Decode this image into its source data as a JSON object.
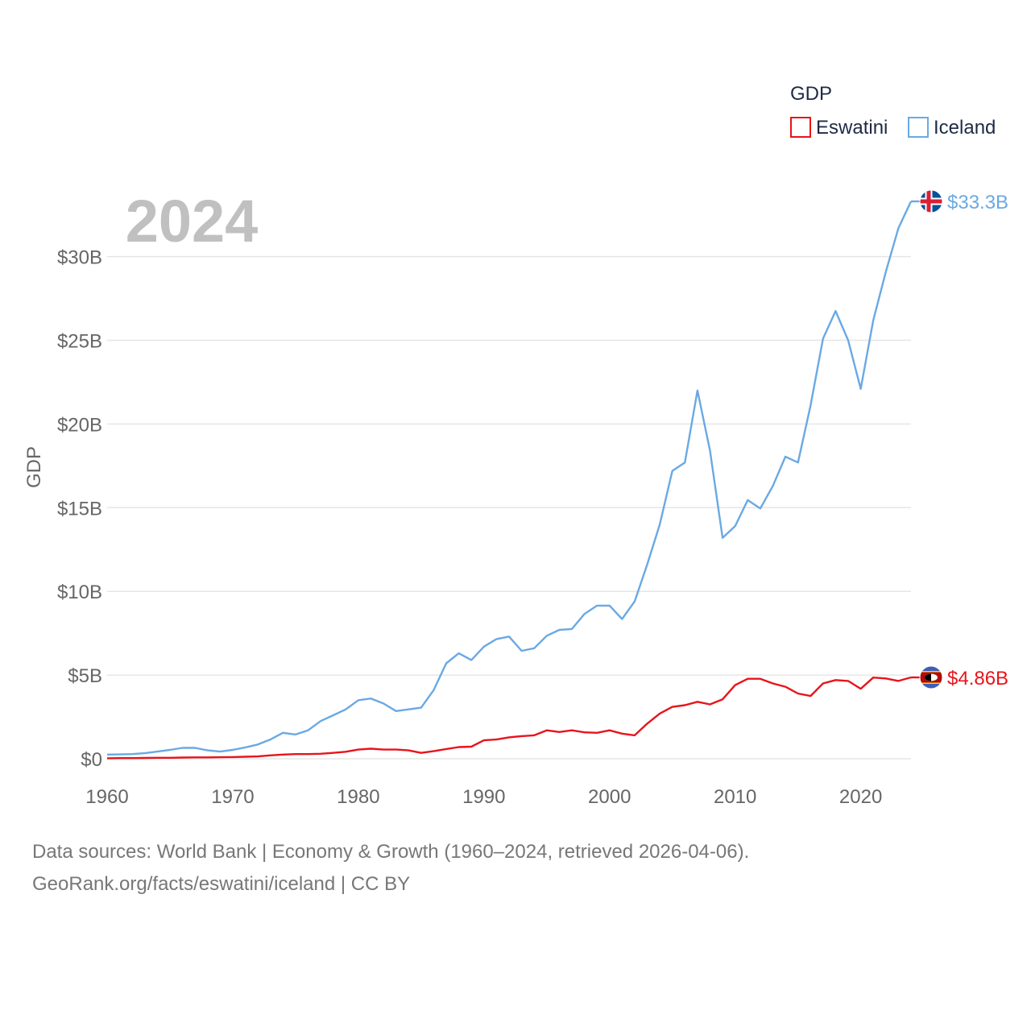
{
  "chart_data": {
    "type": "line",
    "title": "",
    "ylabel": "GDP",
    "xlabel": "",
    "year_label": "2024",
    "legend": {
      "title": "GDP",
      "position": "top-right"
    },
    "xlim": [
      1960,
      2024
    ],
    "ylim": [
      0,
      33.3
    ],
    "x_ticks": [
      1960,
      1970,
      1980,
      1990,
      2000,
      2010,
      2020
    ],
    "x_tick_labels": [
      "1960",
      "1970",
      "1980",
      "1990",
      "2000",
      "2010",
      "2020"
    ],
    "y_ticks": [
      0,
      5,
      10,
      15,
      20,
      25,
      30
    ],
    "y_tick_labels": [
      "$0",
      "$5B",
      "$10B",
      "$15B",
      "$20B",
      "$25B",
      "$30B"
    ],
    "grid": true,
    "x": [
      1960,
      1961,
      1962,
      1963,
      1964,
      1965,
      1966,
      1967,
      1968,
      1969,
      1970,
      1971,
      1972,
      1973,
      1974,
      1975,
      1976,
      1977,
      1978,
      1979,
      1980,
      1981,
      1982,
      1983,
      1984,
      1985,
      1986,
      1987,
      1988,
      1989,
      1990,
      1991,
      1992,
      1993,
      1994,
      1995,
      1996,
      1997,
      1998,
      1999,
      2000,
      2001,
      2002,
      2003,
      2004,
      2005,
      2006,
      2007,
      2008,
      2009,
      2010,
      2011,
      2012,
      2013,
      2014,
      2015,
      2016,
      2017,
      2018,
      2019,
      2020,
      2021,
      2022,
      2023,
      2024
    ],
    "series": [
      {
        "name": "Eswatini",
        "color": "#e8141b",
        "end_label": "$4.86B",
        "flag": "eswatini-flag-icon",
        "values": [
          0.03,
          0.04,
          0.04,
          0.05,
          0.06,
          0.06,
          0.07,
          0.08,
          0.08,
          0.09,
          0.1,
          0.12,
          0.14,
          0.2,
          0.25,
          0.28,
          0.28,
          0.3,
          0.35,
          0.42,
          0.55,
          0.6,
          0.55,
          0.55,
          0.5,
          0.35,
          0.45,
          0.58,
          0.7,
          0.72,
          1.1,
          1.15,
          1.28,
          1.35,
          1.4,
          1.7,
          1.6,
          1.7,
          1.58,
          1.55,
          1.7,
          1.5,
          1.4,
          2.1,
          2.7,
          3.1,
          3.2,
          3.4,
          3.25,
          3.55,
          4.4,
          4.78,
          4.78,
          4.5,
          4.3,
          3.9,
          3.75,
          4.5,
          4.7,
          4.65,
          4.18,
          4.85,
          4.8,
          4.65,
          4.86
        ]
      },
      {
        "name": "Iceland",
        "color": "#6aa9e3",
        "end_label": "$33.3B",
        "flag": "iceland-flag-icon",
        "values": [
          0.25,
          0.26,
          0.28,
          0.33,
          0.43,
          0.53,
          0.65,
          0.65,
          0.5,
          0.43,
          0.53,
          0.68,
          0.85,
          1.15,
          1.55,
          1.45,
          1.7,
          2.25,
          2.6,
          2.95,
          3.5,
          3.6,
          3.3,
          2.85,
          2.95,
          3.05,
          4.1,
          5.7,
          6.3,
          5.9,
          6.7,
          7.15,
          7.3,
          6.45,
          6.6,
          7.35,
          7.7,
          7.75,
          8.65,
          9.15,
          9.15,
          8.35,
          9.4,
          11.6,
          14.0,
          17.2,
          17.7,
          22.0,
          18.4,
          13.2,
          13.9,
          15.45,
          14.95,
          16.3,
          18.05,
          17.7,
          21.1,
          25.1,
          26.75,
          25.0,
          22.1,
          26.2,
          29.1,
          31.7,
          33.3
        ]
      }
    ]
  },
  "footer": {
    "line1": "Data sources: World Bank | Economy & Growth (1960–2024, retrieved 2026-04-06).",
    "line2": "GeoRank.org/facts/eswatini/iceland | CC BY"
  }
}
